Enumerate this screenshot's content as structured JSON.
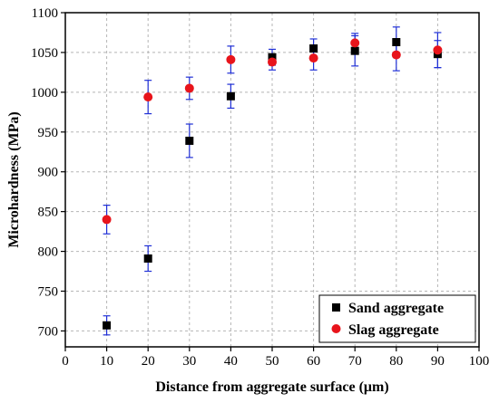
{
  "chart_data": {
    "type": "scatter",
    "xlabel": "Distance from aggregate surface (μm)",
    "ylabel": "Microhardness (MPa)",
    "xlim": [
      0,
      100
    ],
    "ylim": [
      680,
      1100
    ],
    "xticks": [
      0,
      10,
      20,
      30,
      40,
      50,
      60,
      70,
      80,
      90,
      100
    ],
    "yticks": [
      700,
      750,
      800,
      850,
      900,
      950,
      1000,
      1050,
      1100
    ],
    "grid": true,
    "legend_position": "bottom-right",
    "series": [
      {
        "name": "Sand aggregate",
        "marker": "square",
        "color": "#000000",
        "error_color": "#1f2fd6",
        "x": [
          10,
          20,
          30,
          40,
          50,
          60,
          70,
          80,
          90
        ],
        "y": [
          707,
          791,
          939,
          995,
          1044,
          1055,
          1052,
          1063,
          1048
        ],
        "error": [
          12,
          16,
          21,
          15,
          10,
          12,
          19,
          19,
          17
        ]
      },
      {
        "name": "Slag aggregate",
        "marker": "circle",
        "color": "#e8141b",
        "error_color": "#1f2fd6",
        "x": [
          10,
          20,
          30,
          40,
          50,
          60,
          70,
          80,
          90
        ],
        "y": [
          840,
          994,
          1005,
          1041,
          1038,
          1043,
          1062,
          1047,
          1053
        ],
        "error": [
          18,
          21,
          14,
          17,
          10,
          15,
          12,
          20,
          22
        ]
      }
    ]
  }
}
